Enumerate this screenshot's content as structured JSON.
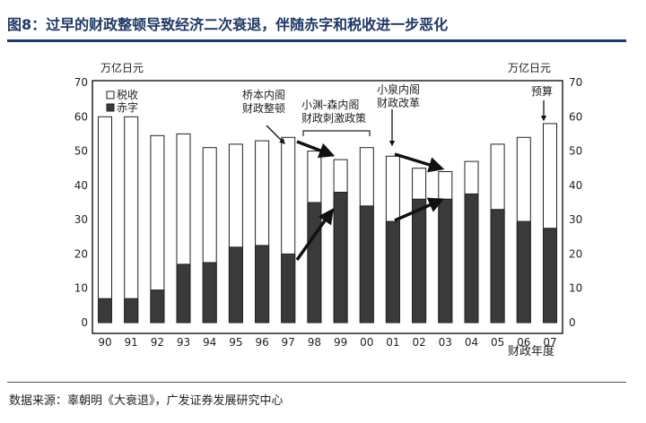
{
  "header": {
    "title": "图8：过早的财政整顿导致经济二次衰退，伴随赤字和税收进一步恶化"
  },
  "footer": {
    "source": "数据来源：辜朝明《大衰退》，广发证券发展研究中心"
  },
  "chart_data": {
    "type": "bar",
    "ylabel_left": "万亿日元",
    "ylabel_right": "万亿日元",
    "xlabel": "财政年度",
    "ylim": [
      0,
      70
    ],
    "yticks": [
      0,
      10,
      20,
      30,
      40,
      50,
      60,
      70
    ],
    "grid": false,
    "legend_position": "top-left",
    "categories": [
      "90",
      "91",
      "92",
      "93",
      "94",
      "95",
      "96",
      "97",
      "98",
      "99",
      "00",
      "01",
      "02",
      "03",
      "04",
      "05",
      "06",
      "07"
    ],
    "series": [
      {
        "name": "税收",
        "color": "#ffffff",
        "values": [
          60,
          60,
          54.5,
          55,
          51,
          52,
          53,
          54,
          50,
          47.5,
          51,
          48.5,
          45,
          44,
          47,
          52,
          54,
          58
        ]
      },
      {
        "name": "赤字",
        "color": "#3a3a3a",
        "values": [
          7,
          7,
          9.5,
          17,
          17.5,
          22,
          22.5,
          20,
          35,
          38,
          34,
          29.5,
          36,
          36,
          37.5,
          33,
          29.5,
          27.5
        ]
      }
    ],
    "annotations": {
      "hashimoto": "桥本内阁\n财政整顿",
      "obuchi": "小渊-森内阁\n财政刺激政策",
      "koizumi": "小泉内阁\n财政改革",
      "budget": "预算"
    }
  }
}
